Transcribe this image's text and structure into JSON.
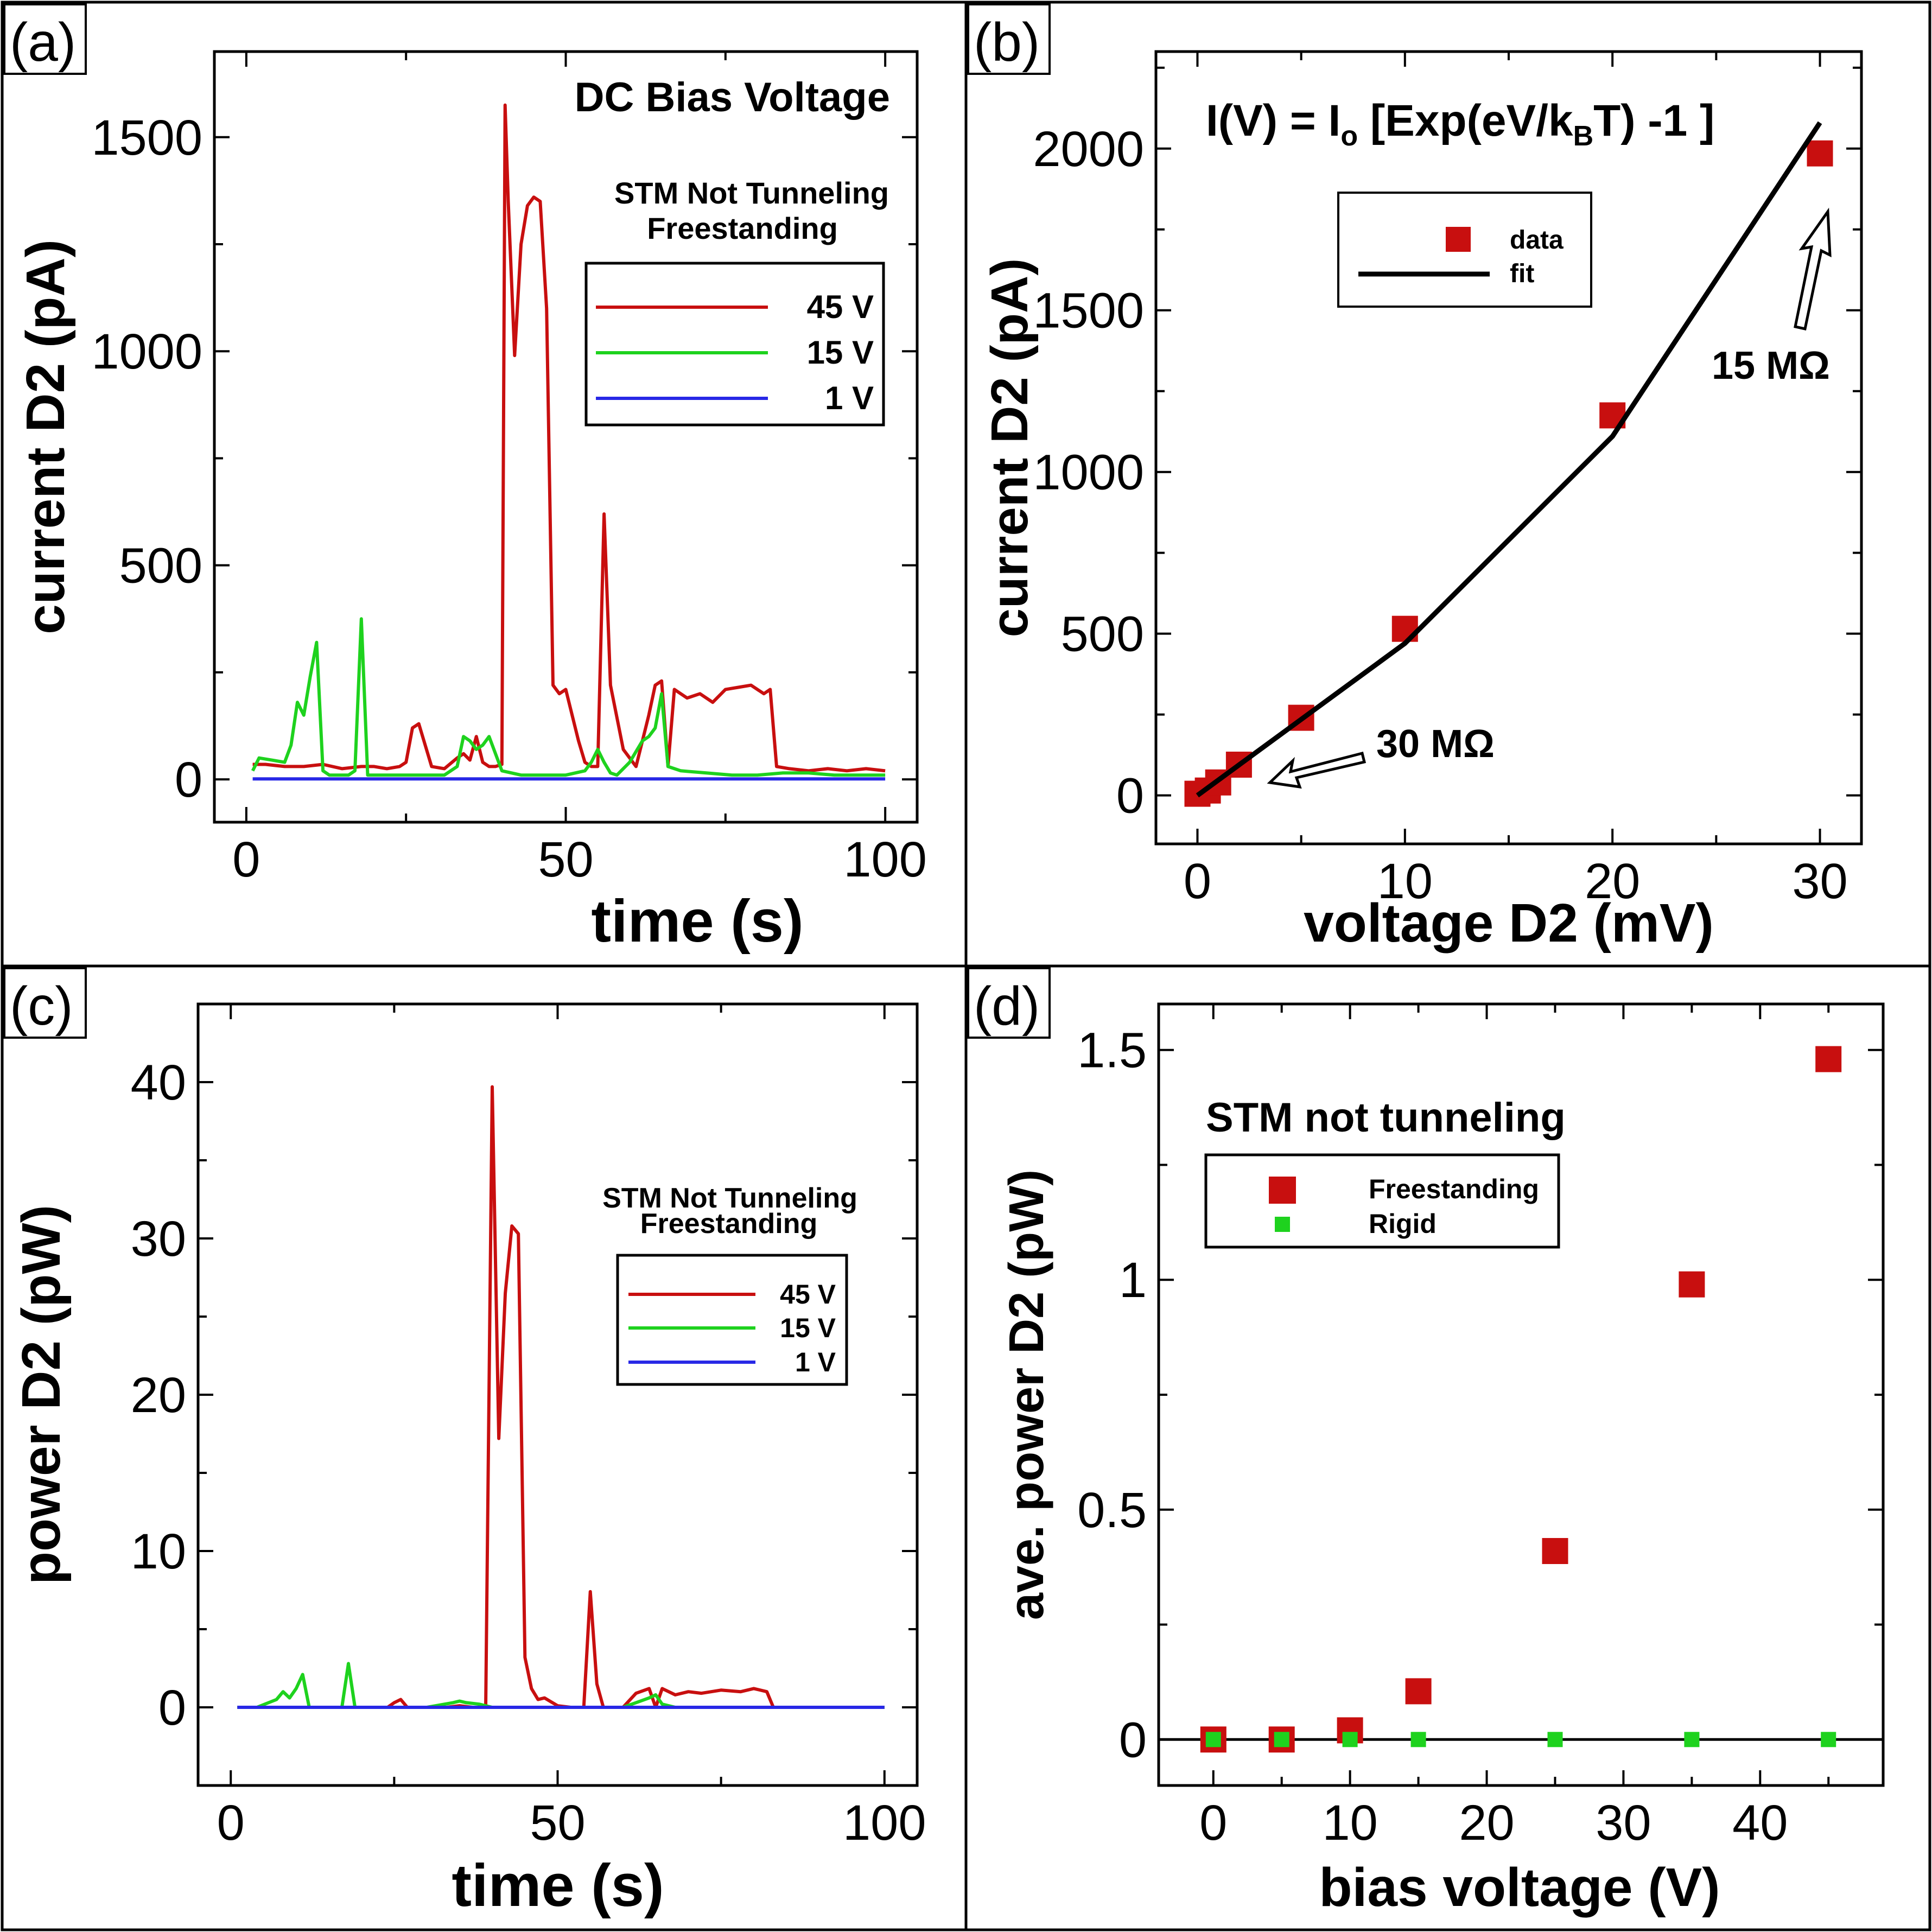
{
  "colors": {
    "red": "#c80f0f",
    "green": "#1ed21e",
    "blue": "#2828e6",
    "black": "#000000"
  },
  "chart_data": [
    {
      "panel": "(a)",
      "type": "line",
      "xlabel": "time (s)",
      "ylabel": "current D2 (pA)",
      "xlim": [
        -5,
        105
      ],
      "ylim": [
        -100,
        1700
      ],
      "xticks": [
        0,
        50,
        100
      ],
      "yticks": [
        0,
        500,
        1000,
        1500
      ],
      "annotations": [
        "DC Bias Voltage",
        "STM Not Tunneling",
        "Freestanding"
      ],
      "series": [
        {
          "name": "45 V",
          "color": "#c80f0f",
          "x": [
            1,
            3,
            6,
            9,
            12,
            15,
            18,
            20,
            22,
            24,
            25,
            26,
            27,
            29,
            31,
            33,
            34,
            35,
            36,
            37,
            38,
            39,
            40,
            40.5,
            41,
            42,
            43,
            44,
            45,
            46,
            47,
            48,
            49,
            50,
            52,
            53,
            54,
            55,
            56,
            57,
            59,
            61,
            63,
            64,
            65,
            66,
            67,
            69,
            71,
            73,
            75,
            77,
            79,
            81,
            82,
            83,
            85,
            88,
            91,
            94,
            97,
            100
          ],
          "y": [
            35,
            35,
            30,
            30,
            35,
            25,
            30,
            30,
            25,
            30,
            40,
            120,
            130,
            30,
            25,
            50,
            60,
            45,
            100,
            40,
            30,
            30,
            35,
            1575,
            1350,
            990,
            1250,
            1340,
            1360,
            1350,
            1100,
            220,
            200,
            210,
            90,
            40,
            30,
            30,
            620,
            220,
            70,
            30,
            150,
            220,
            230,
            30,
            210,
            190,
            200,
            180,
            210,
            215,
            220,
            200,
            210,
            30,
            25,
            20,
            25,
            20,
            25,
            20
          ],
          "note": "values estimated from image"
        },
        {
          "name": "15 V",
          "color": "#1ed21e",
          "x": [
            1,
            2,
            4,
            6,
            7,
            8,
            9,
            10,
            11,
            12,
            13,
            14,
            15,
            16,
            17,
            18,
            19,
            20,
            22,
            25,
            28,
            31,
            33,
            34,
            35,
            36,
            37,
            38,
            40,
            43,
            46,
            50,
            53,
            54,
            55,
            56,
            57,
            58,
            60,
            62,
            63,
            64,
            65,
            66,
            68,
            72,
            76,
            80,
            84,
            88,
            92,
            96,
            100
          ],
          "y": [
            20,
            50,
            45,
            40,
            80,
            180,
            150,
            240,
            320,
            20,
            10,
            10,
            10,
            10,
            20,
            375,
            10,
            10,
            10,
            10,
            10,
            10,
            30,
            100,
            90,
            70,
            80,
            100,
            20,
            10,
            10,
            10,
            20,
            40,
            70,
            40,
            15,
            10,
            40,
            90,
            100,
            120,
            200,
            30,
            20,
            15,
            10,
            10,
            15,
            15,
            10,
            10,
            10
          ],
          "note": "values estimated from image"
        },
        {
          "name": "1 V",
          "color": "#2828e6",
          "x": [
            1,
            100
          ],
          "y": [
            1,
            1
          ]
        }
      ]
    },
    {
      "panel": "(b)",
      "type": "scatter",
      "xlabel": "voltage D2 (mV)",
      "ylabel": "current D2 (pA)",
      "xlim": [
        -2,
        32
      ],
      "ylim": [
        -150,
        2300
      ],
      "xticks": [
        0,
        10,
        20,
        30
      ],
      "yticks": [
        0,
        500,
        1000,
        1500,
        2000
      ],
      "equation": {
        "main": "I(V) = I",
        "sub_o": "o",
        "mid": " [Exp(eV/k",
        "sub_b": "B",
        "end": "T) -1 ]"
      },
      "series": [
        {
          "name": "data",
          "color": "#c80f0f",
          "x": [
            0,
            0.5,
            1,
            2,
            5,
            10,
            20,
            30
          ],
          "y": [
            5,
            15,
            40,
            95,
            240,
            515,
            1175,
            1985
          ]
        },
        {
          "name": "fit",
          "color": "#000000",
          "x": [
            0,
            10,
            20,
            30
          ],
          "y": [
            0,
            470,
            1110,
            2080
          ]
        }
      ],
      "annotations": [
        "30 MΩ",
        "15 MΩ"
      ]
    },
    {
      "panel": "(c)",
      "type": "line",
      "xlabel": "time (s)",
      "ylabel": "power D2 (pW)",
      "xlim": [
        -5,
        105
      ],
      "ylim": [
        -5,
        45
      ],
      "xticks": [
        0,
        50,
        100
      ],
      "yticks": [
        0,
        10,
        20,
        30,
        40
      ],
      "annotations": [
        "STM Not Tunneling",
        "Freestanding"
      ],
      "series": [
        {
          "name": "45 V",
          "color": "#c80f0f",
          "x": [
            1,
            5,
            10,
            15,
            20,
            24,
            25,
            26,
            27,
            30,
            33,
            35,
            37,
            38,
            39,
            40,
            41,
            42,
            43,
            44,
            45,
            46,
            47,
            48,
            50,
            52,
            54,
            55,
            56,
            57,
            60,
            62,
            64,
            65,
            66,
            68,
            70,
            72,
            75,
            78,
            80,
            82,
            83,
            86,
            90,
            95,
            100
          ],
          "y": [
            0,
            0,
            0,
            0,
            0,
            0,
            0.3,
            0.5,
            0,
            0,
            0,
            0.1,
            0,
            0,
            0,
            39.7,
            17.2,
            26.5,
            30.8,
            30.3,
            3.2,
            1.2,
            0.5,
            0.6,
            0.1,
            0,
            0,
            7.4,
            1.5,
            0,
            0,
            0.9,
            1.2,
            0,
            1.2,
            0.8,
            1.0,
            0.9,
            1.1,
            1.0,
            1.2,
            1.0,
            0,
            0,
            0,
            0,
            0
          ],
          "note": "values estimated from image"
        },
        {
          "name": "15 V",
          "color": "#1ed21e",
          "x": [
            1,
            4,
            7,
            8,
            9,
            10,
            11,
            12,
            14,
            16,
            17,
            18,
            19,
            20,
            25,
            30,
            34,
            35,
            36,
            38,
            40,
            45,
            50,
            55,
            60,
            62,
            64,
            65,
            66,
            68,
            70,
            75,
            80,
            85,
            90,
            95,
            100
          ],
          "y": [
            0,
            0,
            0.5,
            1.0,
            0.6,
            1.2,
            2.1,
            0,
            0,
            0,
            0,
            2.8,
            0,
            0,
            0,
            0,
            0.3,
            0.4,
            0.3,
            0.2,
            0,
            0,
            0,
            0,
            0,
            0.3,
            0.6,
            0.8,
            0.2,
            0,
            0,
            0,
            0,
            0,
            0,
            0,
            0
          ],
          "note": "values estimated from image"
        },
        {
          "name": "1 V",
          "color": "#2828e6",
          "x": [
            1,
            100
          ],
          "y": [
            0,
            0
          ]
        }
      ]
    },
    {
      "panel": "(d)",
      "type": "scatter",
      "xlabel": "bias voltage (V)",
      "ylabel": "ave. power D2 (pW)",
      "xlim": [
        -4,
        49
      ],
      "ylim": [
        -0.1,
        1.6
      ],
      "xticks": [
        0,
        10,
        20,
        30,
        40
      ],
      "yticks": [
        0,
        0.5,
        1,
        1.5
      ],
      "ytick_labels": [
        "0",
        "0.5",
        "1",
        "1.5"
      ],
      "annotations": [
        "STM not tunneling"
      ],
      "series": [
        {
          "name": "Freestanding",
          "color": "#c80f0f",
          "x": [
            0,
            5,
            10,
            15,
            25,
            35,
            45
          ],
          "y": [
            0,
            0,
            0.02,
            0.105,
            0.41,
            0.99,
            1.48
          ]
        },
        {
          "name": "Rigid",
          "color": "#1ed21e",
          "x": [
            0,
            5,
            10,
            15,
            25,
            35,
            45
          ],
          "y": [
            0,
            0,
            0,
            0,
            0,
            0,
            0
          ]
        }
      ]
    }
  ]
}
